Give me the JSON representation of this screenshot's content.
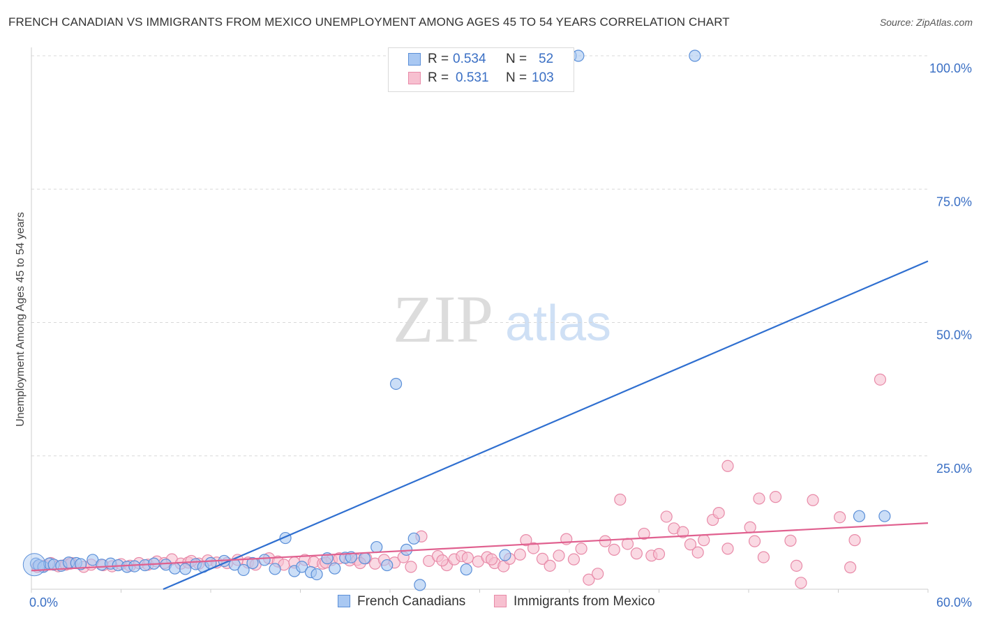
{
  "title": "FRENCH CANADIAN VS IMMIGRANTS FROM MEXICO UNEMPLOYMENT AMONG AGES 45 TO 54 YEARS CORRELATION CHART",
  "source": "Source: ZipAtlas.com",
  "watermark": {
    "zip": "ZIP",
    "atlas": "atlas"
  },
  "colors": {
    "blue_fill": "#a9c8f2",
    "blue_stroke": "#5b8fd8",
    "blue_line": "#2f6fd0",
    "pink_fill": "#f7c0d0",
    "pink_stroke": "#e88aa8",
    "pink_line": "#e0608f",
    "axis_text": "#3a6fc4",
    "grid": "#d8d8d8"
  },
  "legend_top": [
    {
      "r_label": "R =",
      "r_value": "0.534",
      "n_label": "N =",
      "n_value": "52"
    },
    {
      "r_label": "R =",
      "r_value": "0.531",
      "n_label": "N =",
      "n_value": "103"
    }
  ],
  "legend_bottom": [
    "French Canadians",
    "Immigrants from Mexico"
  ],
  "chart_data": {
    "type": "scatter",
    "title": "FRENCH CANADIAN VS IMMIGRANTS FROM MEXICO UNEMPLOYMENT AMONG AGES 45 TO 54 YEARS CORRELATION CHART",
    "xlabel": "",
    "ylabel": "Unemployment Among Ages 45 to 54 years",
    "xlim": [
      0,
      60
    ],
    "ylim": [
      0,
      100
    ],
    "x_tick_labels": [
      "0.0%",
      "60.0%"
    ],
    "y_ticks": [
      25,
      50,
      75,
      100
    ],
    "y_tick_labels": [
      "25.0%",
      "50.0%",
      "75.0%",
      "100.0%"
    ],
    "grid": true,
    "series": [
      {
        "name": "French Canadians",
        "r": 0.534,
        "n": 52,
        "trend": {
          "x": [
            0,
            60
          ],
          "y": [
            -10.6,
            61.5
          ]
        },
        "points": [
          [
            0.3,
            4.8
          ],
          [
            0.5,
            4.5
          ],
          [
            0.8,
            4.2
          ],
          [
            1.2,
            4.8
          ],
          [
            1.5,
            4.6
          ],
          [
            2.0,
            4.4
          ],
          [
            2.5,
            5.0
          ],
          [
            3.0,
            4.9
          ],
          [
            3.3,
            4.7
          ],
          [
            4.1,
            5.5
          ],
          [
            4.7,
            4.6
          ],
          [
            5.3,
            4.8
          ],
          [
            5.8,
            4.5
          ],
          [
            6.4,
            4.2
          ],
          [
            6.9,
            4.3
          ],
          [
            7.6,
            4.5
          ],
          [
            8.2,
            4.8
          ],
          [
            9.0,
            4.6
          ],
          [
            9.6,
            3.9
          ],
          [
            10.3,
            3.8
          ],
          [
            11.0,
            4.7
          ],
          [
            11.5,
            4.2
          ],
          [
            12.0,
            4.9
          ],
          [
            12.9,
            5.3
          ],
          [
            13.6,
            4.6
          ],
          [
            14.2,
            3.6
          ],
          [
            14.8,
            4.9
          ],
          [
            15.6,
            5.5
          ],
          [
            16.3,
            3.8
          ],
          [
            17.0,
            9.6
          ],
          [
            17.6,
            3.4
          ],
          [
            18.1,
            4.2
          ],
          [
            18.7,
            3.2
          ],
          [
            19.1,
            2.8
          ],
          [
            19.8,
            5.8
          ],
          [
            20.3,
            3.9
          ],
          [
            21.0,
            5.9
          ],
          [
            21.4,
            6.0
          ],
          [
            22.3,
            5.8
          ],
          [
            23.1,
            7.9
          ],
          [
            23.8,
            4.5
          ],
          [
            24.4,
            38.5
          ],
          [
            25.1,
            7.4
          ],
          [
            25.6,
            9.5
          ],
          [
            26.0,
            0.8
          ],
          [
            29.1,
            3.7
          ],
          [
            31.7,
            6.4
          ],
          [
            36.1,
            100
          ],
          [
            36.6,
            100
          ],
          [
            44.4,
            100
          ],
          [
            55.4,
            13.7
          ],
          [
            57.1,
            13.7
          ]
        ]
      },
      {
        "name": "Immigrants from Mexico",
        "r": 0.531,
        "n": 103,
        "trend": {
          "x": [
            0,
            60
          ],
          "y": [
            3.5,
            12.4
          ]
        },
        "points": [
          [
            0.4,
            4.2
          ],
          [
            0.9,
            4.4
          ],
          [
            1.3,
            4.9
          ],
          [
            1.8,
            4.3
          ],
          [
            2.3,
            4.6
          ],
          [
            2.7,
            4.9
          ],
          [
            3.5,
            4.2
          ],
          [
            4.0,
            4.6
          ],
          [
            4.8,
            4.5
          ],
          [
            5.4,
            4.3
          ],
          [
            6.0,
            4.7
          ],
          [
            6.6,
            4.4
          ],
          [
            7.2,
            4.9
          ],
          [
            7.8,
            4.6
          ],
          [
            8.4,
            5.2
          ],
          [
            8.9,
            4.9
          ],
          [
            9.4,
            5.6
          ],
          [
            10.0,
            4.8
          ],
          [
            10.5,
            5.0
          ],
          [
            11.2,
            4.8
          ],
          [
            11.8,
            5.4
          ],
          [
            12.4,
            5.0
          ],
          [
            13.1,
            4.9
          ],
          [
            13.8,
            5.5
          ],
          [
            14.5,
            5.0
          ],
          [
            15.0,
            4.6
          ],
          [
            15.9,
            5.8
          ],
          [
            16.5,
            5.2
          ],
          [
            16.9,
            4.6
          ],
          [
            17.6,
            5.0
          ],
          [
            18.3,
            5.5
          ],
          [
            18.9,
            5.1
          ],
          [
            19.5,
            4.8
          ],
          [
            20.1,
            5.5
          ],
          [
            20.6,
            5.8
          ],
          [
            21.3,
            5.4
          ],
          [
            21.8,
            5.5
          ],
          [
            22.4,
            5.8
          ],
          [
            23.0,
            4.8
          ],
          [
            23.6,
            5.5
          ],
          [
            24.3,
            5.0
          ],
          [
            24.9,
            6.0
          ],
          [
            25.4,
            4.2
          ],
          [
            26.1,
            9.9
          ],
          [
            26.6,
            5.3
          ],
          [
            27.2,
            6.2
          ],
          [
            27.8,
            4.5
          ],
          [
            28.3,
            5.6
          ],
          [
            28.8,
            6.2
          ],
          [
            29.2,
            5.9
          ],
          [
            29.9,
            5.2
          ],
          [
            30.5,
            6.0
          ],
          [
            31.0,
            4.9
          ],
          [
            31.6,
            4.3
          ],
          [
            32.0,
            5.7
          ],
          [
            32.7,
            6.5
          ],
          [
            33.1,
            9.2
          ],
          [
            33.6,
            7.7
          ],
          [
            34.2,
            5.7
          ],
          [
            34.7,
            4.4
          ],
          [
            35.3,
            6.3
          ],
          [
            35.8,
            9.4
          ],
          [
            36.3,
            5.6
          ],
          [
            36.8,
            7.6
          ],
          [
            37.3,
            1.8
          ],
          [
            37.9,
            2.9
          ],
          [
            38.4,
            9.0
          ],
          [
            39.0,
            7.4
          ],
          [
            39.4,
            16.8
          ],
          [
            39.9,
            8.5
          ],
          [
            40.5,
            6.7
          ],
          [
            41.0,
            10.4
          ],
          [
            41.5,
            6.3
          ],
          [
            42.0,
            6.6
          ],
          [
            42.5,
            13.6
          ],
          [
            43.0,
            11.4
          ],
          [
            43.6,
            10.7
          ],
          [
            44.1,
            8.4
          ],
          [
            44.6,
            6.9
          ],
          [
            45.0,
            9.2
          ],
          [
            45.6,
            13.0
          ],
          [
            46.0,
            14.3
          ],
          [
            46.6,
            7.6
          ],
          [
            46.6,
            23.1
          ],
          [
            48.1,
            11.6
          ],
          [
            48.7,
            17.0
          ],
          [
            49.0,
            6.0
          ],
          [
            49.8,
            17.3
          ],
          [
            50.8,
            9.1
          ],
          [
            51.2,
            4.4
          ],
          [
            51.5,
            1.2
          ],
          [
            52.3,
            16.7
          ],
          [
            54.1,
            13.5
          ],
          [
            54.8,
            4.1
          ],
          [
            55.1,
            9.2
          ],
          [
            56.8,
            39.3
          ],
          [
            2.6,
            4.8
          ],
          [
            10.7,
            5.3
          ],
          [
            19.7,
            5.0
          ],
          [
            22.0,
            4.9
          ],
          [
            27.5,
            5.4
          ],
          [
            30.8,
            5.6
          ],
          [
            48.4,
            9.0
          ]
        ]
      }
    ]
  }
}
